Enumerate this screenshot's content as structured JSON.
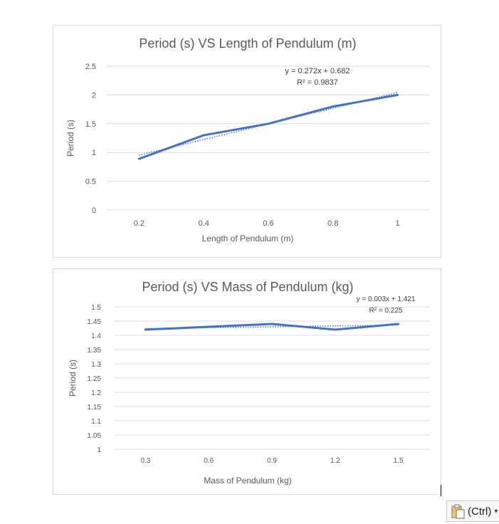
{
  "charts": [
    {
      "type": "line",
      "title": "Period (s) VS Length of Pendulum (m)",
      "xlabel": "Length of Pendulum (m)",
      "ylabel": "Period (s)",
      "ylim": [
        0,
        2.5
      ],
      "y_ticks": [
        "0",
        "0.5",
        "1",
        "1.5",
        "2",
        "2.5"
      ],
      "categories": [
        "0.2",
        "0.4",
        "0.6",
        "0.8",
        "1"
      ],
      "series": [
        {
          "values": [
            0.89,
            1.3,
            1.5,
            1.8,
            2.0
          ]
        }
      ],
      "trendline": {
        "slope": 0.272,
        "intercept": 0.682,
        "style": "dotted"
      },
      "equation": "y = 0.272x + 0.682",
      "r_squared": "R² = 0.9837",
      "grid": true,
      "line_color": "#4472c4"
    },
    {
      "type": "line",
      "title": "Period (s) VS Mass of Pendulum (kg)",
      "xlabel": "Mass of Pendulum (kg)",
      "ylabel": "Period (s)",
      "ylim": [
        1,
        1.5
      ],
      "y_ticks": [
        "1",
        "1.05",
        "1.1",
        "1.15",
        "1.2",
        "1.25",
        "1.3",
        "1.35",
        "1.4",
        "1.45",
        "1.5"
      ],
      "categories": [
        "0.3",
        "0.6",
        "0.9",
        "1.2",
        "1.5"
      ],
      "series": [
        {
          "values": [
            1.42,
            1.43,
            1.44,
            1.42,
            1.44
          ]
        }
      ],
      "trendline": {
        "slope": 0.003,
        "intercept": 1.421,
        "style": "dotted"
      },
      "equation": "y = 0.003x + 1.421",
      "r_squared": "R² = 0.225",
      "grid": true,
      "line_color": "#4472c4"
    }
  ],
  "paste_options": {
    "label": "(Ctrl)",
    "icon": "clipboard-icon",
    "caret": "▾"
  }
}
